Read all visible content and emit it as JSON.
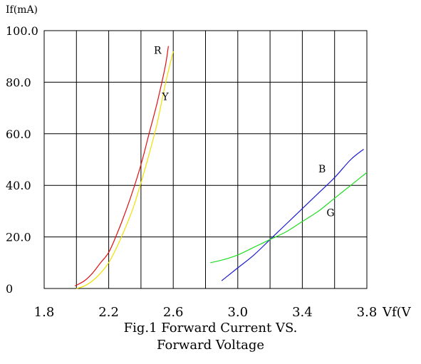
{
  "chart_data": {
    "type": "line",
    "title_line1": "Fig.1 Forward Current VS.",
    "title_line2": "Forward Voltage",
    "xlabel": "Vf(V",
    "ylabel": "If(mA)",
    "xlim": [
      1.8,
      3.8
    ],
    "ylim": [
      0,
      100
    ],
    "x_ticks": [
      "1.8",
      "2.2",
      "2.6",
      "3.0",
      "3.4",
      "3.8"
    ],
    "y_ticks": [
      "0",
      "20.0",
      "40.0",
      "60.0",
      "80.0",
      "100.0"
    ],
    "grid": true,
    "series": [
      {
        "name": "R",
        "color": "#e01010",
        "x": [
          1.99,
          2.05,
          2.1,
          2.15,
          2.2,
          2.25,
          2.3,
          2.35,
          2.4,
          2.45,
          2.5,
          2.55,
          2.57
        ],
        "y": [
          1,
          3,
          6,
          10,
          14,
          21,
          29,
          38,
          48,
          60,
          72,
          86,
          94
        ]
      },
      {
        "name": "Y",
        "color": "#f0e000",
        "x": [
          2.0,
          2.05,
          2.1,
          2.15,
          2.2,
          2.25,
          2.3,
          2.35,
          2.4,
          2.45,
          2.5,
          2.55,
          2.6
        ],
        "y": [
          0,
          1,
          3,
          6,
          10,
          16,
          23,
          31,
          41,
          52,
          64,
          79,
          92
        ]
      },
      {
        "name": "B",
        "color": "#1a1ad0",
        "x": [
          2.9,
          3.0,
          3.1,
          3.2,
          3.3,
          3.4,
          3.5,
          3.6,
          3.7,
          3.78
        ],
        "y": [
          3,
          8,
          13,
          19,
          25,
          31,
          37,
          43,
          50,
          54
        ]
      },
      {
        "name": "G",
        "color": "#22dd22",
        "x": [
          2.83,
          2.9,
          3.0,
          3.1,
          3.2,
          3.3,
          3.4,
          3.5,
          3.6,
          3.7,
          3.8
        ],
        "y": [
          10,
          11,
          13,
          16,
          19,
          22,
          26,
          30,
          35,
          40,
          45
        ]
      }
    ]
  }
}
